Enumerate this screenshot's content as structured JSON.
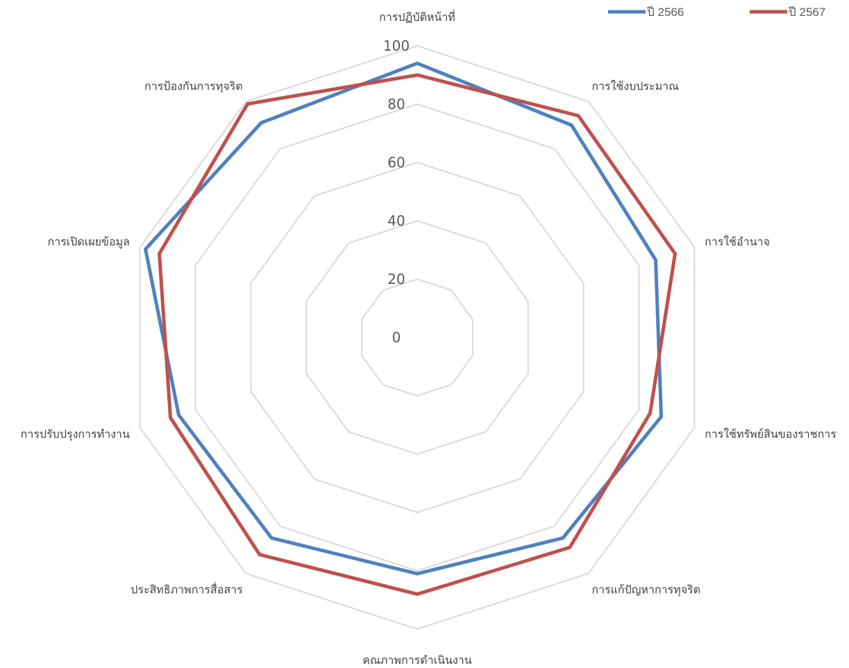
{
  "chart_data": {
    "type": "radar",
    "title": "",
    "categories": [
      "การปฏิบัติหน้าที่",
      "การใช้งบประมาณ",
      "การใช้อำนาจ",
      "การใช้ทรัพย์สินของราชการ",
      "การแก้ปัญหาการทุจริต",
      "คุณภาพการดำเนินงาน",
      "ประสิทธิภาพการสื่อสาร",
      "การปรับปรุงการทำงาน",
      "การเปิดเผยข้อมูล",
      "การป้องกันการทุจริต"
    ],
    "rlim": [
      0,
      100
    ],
    "ticks": [
      "0",
      "20",
      "40",
      "60",
      "80",
      "100"
    ],
    "tick_values": [
      0,
      20,
      40,
      60,
      80,
      100
    ],
    "grid": true,
    "legend_position": "top-right",
    "series": [
      {
        "name": "ปี 2566",
        "color": "#4F81BD",
        "values": [
          94,
          90,
          86,
          88,
          85,
          81,
          85,
          86,
          98,
          91
        ]
      },
      {
        "name": "ปี 2567",
        "color": "#C0504D",
        "values": [
          90,
          94,
          93,
          84,
          89,
          88,
          92,
          89,
          93,
          99
        ]
      }
    ]
  }
}
